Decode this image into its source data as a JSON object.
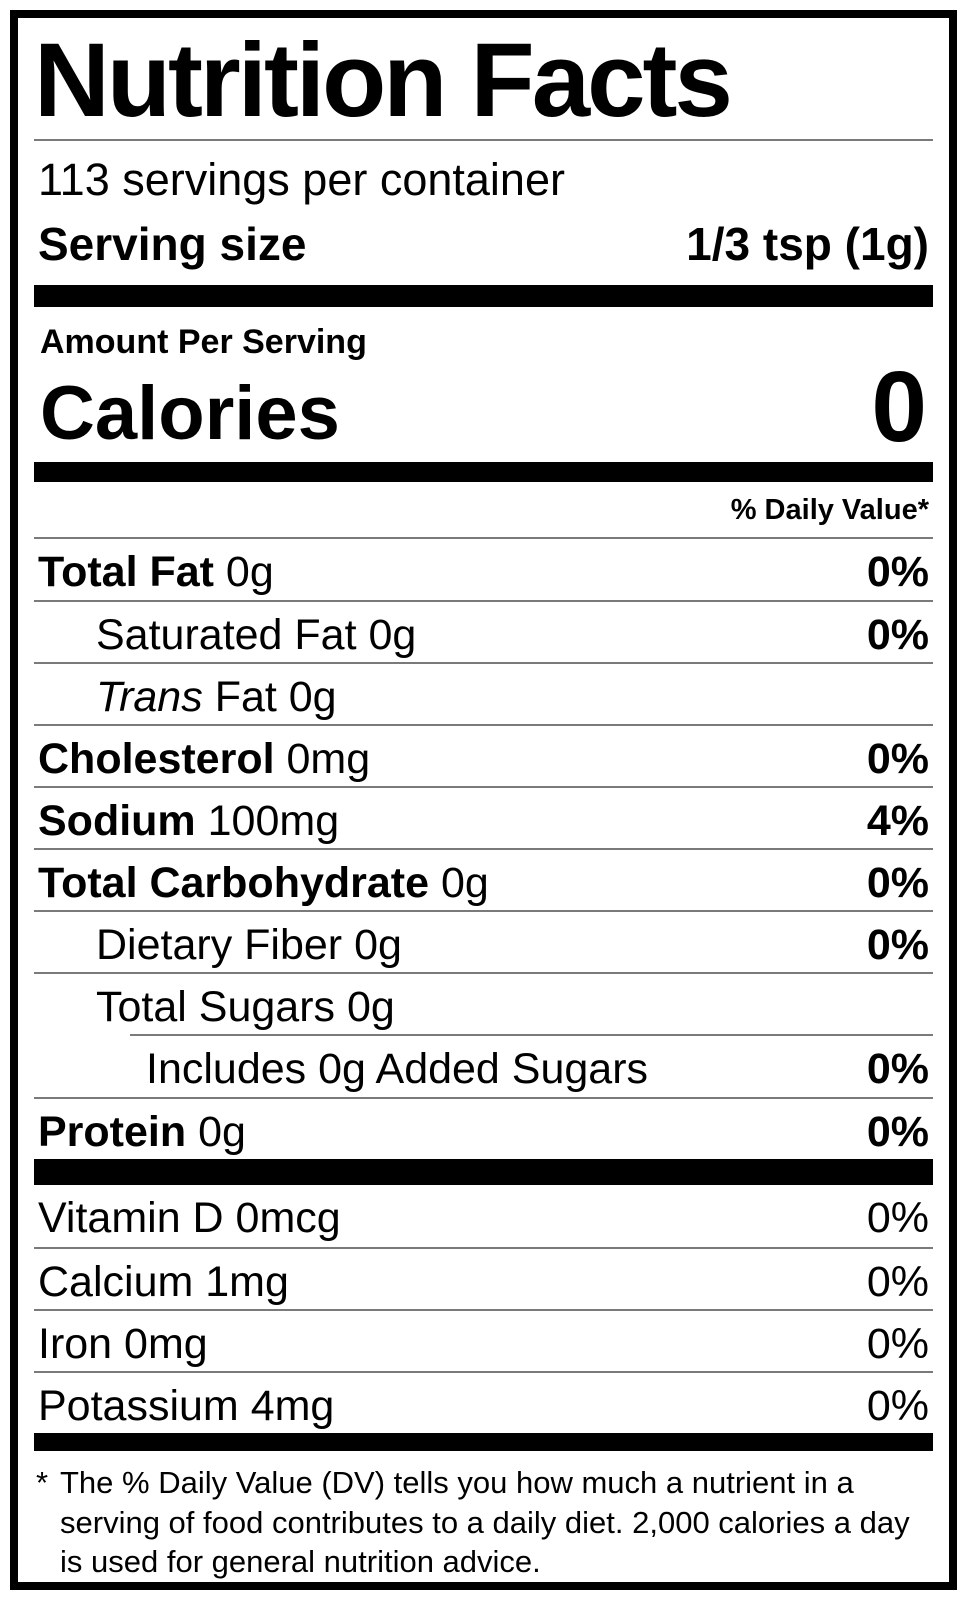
{
  "title": "Nutrition Facts",
  "servings_per_container": "113 servings per container",
  "serving_size": {
    "label": "Serving size",
    "value": "1/3 tsp (1g)"
  },
  "amount_per_serving": "Amount Per Serving",
  "calories": {
    "label": "Calories",
    "value": "0"
  },
  "daily_value_header": "% Daily Value*",
  "rows": [
    {
      "name": "Total Fat",
      "amount": "0g",
      "dv": "0%"
    },
    {
      "name": "Saturated Fat",
      "amount": "0g",
      "dv": "0%"
    },
    {
      "name_italic": "Trans",
      "amount": "Fat 0g",
      "dv": ""
    },
    {
      "name": "Cholesterol",
      "amount": "0mg",
      "dv": "0%"
    },
    {
      "name": "Sodium",
      "amount": "100mg",
      "dv": "4%"
    },
    {
      "name": "Total Carbohydrate",
      "amount": "0g",
      "dv": "0%"
    },
    {
      "name": "Dietary Fiber",
      "amount": "0g",
      "dv": "0%"
    },
    {
      "name": "Total Sugars",
      "amount": "0g",
      "dv": ""
    },
    {
      "name": "Includes 0g Added Sugars",
      "amount": "",
      "dv": "0%"
    },
    {
      "name": "Protein",
      "amount": "0g",
      "dv": "0%"
    }
  ],
  "vitamins": [
    {
      "name": "Vitamin D 0mcg",
      "dv": "0%"
    },
    {
      "name": "Calcium 1mg",
      "dv": "0%"
    },
    {
      "name": "Iron 0mg",
      "dv": "0%"
    },
    {
      "name": "Potassium 4mg",
      "dv": "0%"
    }
  ],
  "footnote": {
    "star": "*",
    "text": "The % Daily Value (DV) tells you how much a nutrient in a serving of food contributes to a daily diet. 2,000 calories a day is used for general nutrition advice."
  },
  "colors": {
    "ink": "#000000",
    "rule": "#7a7a7a",
    "background": "#ffffff"
  }
}
